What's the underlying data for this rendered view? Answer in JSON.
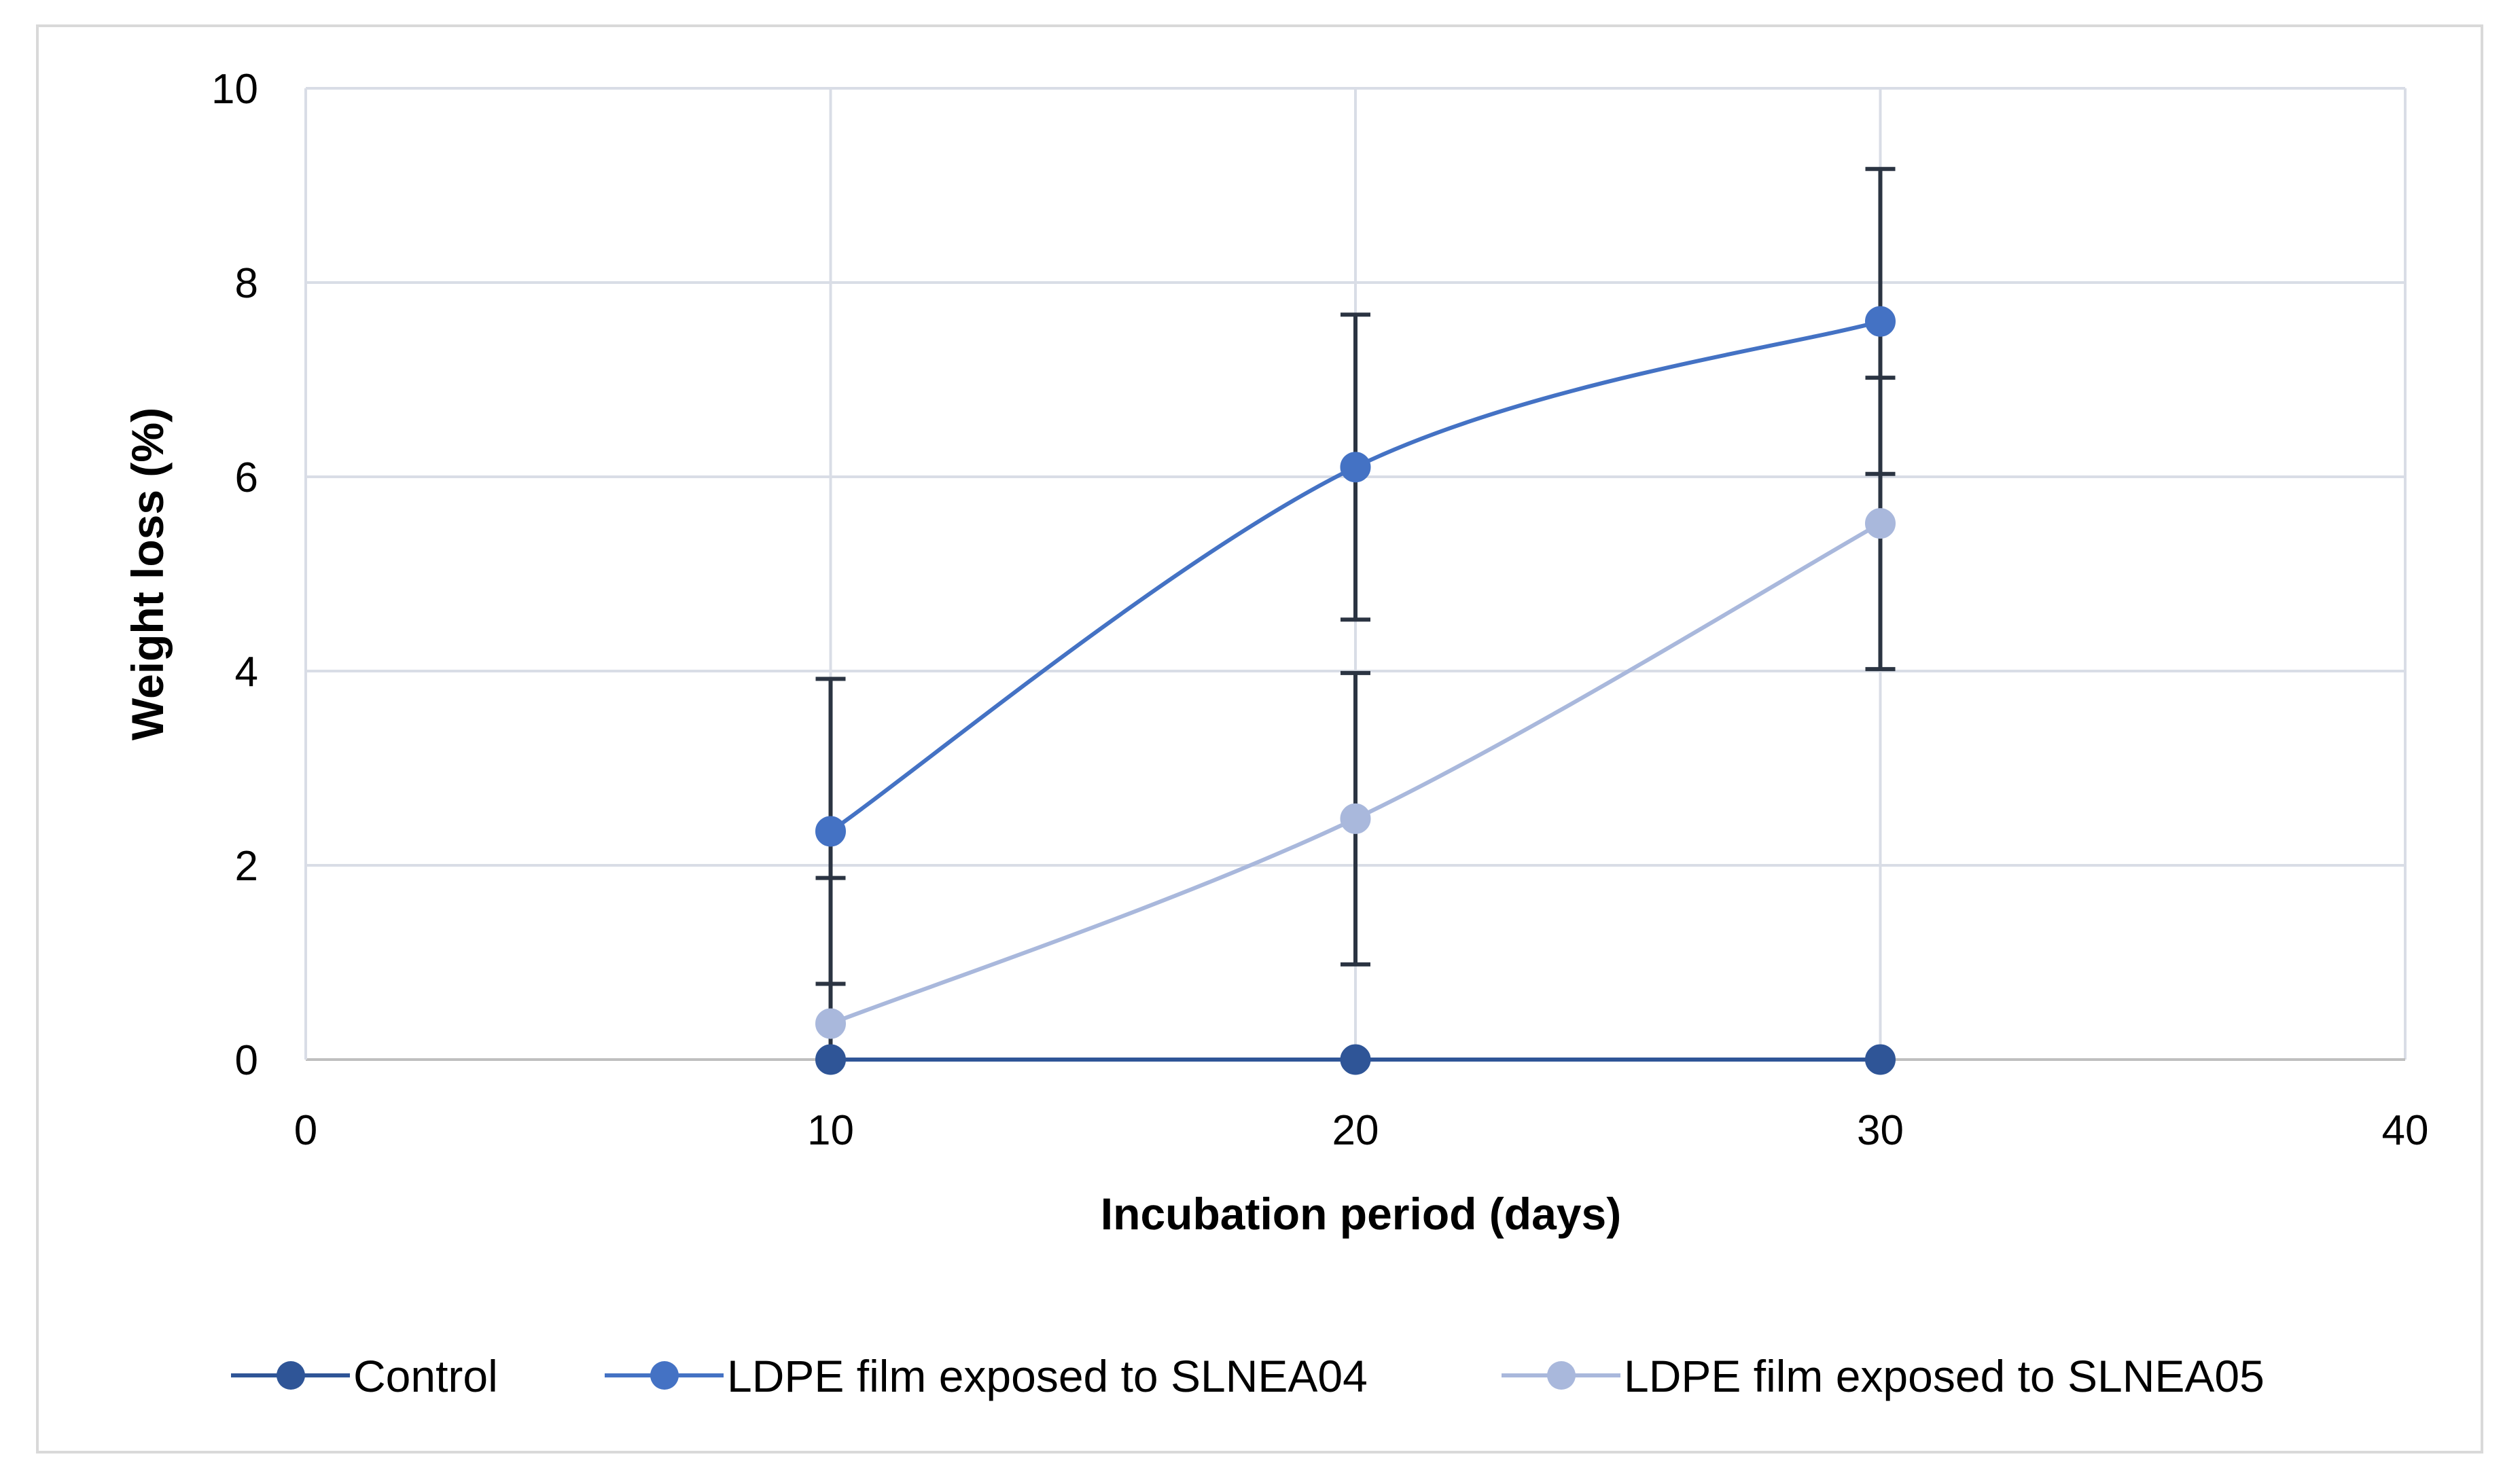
{
  "chart_data": {
    "type": "line",
    "title": "",
    "xlabel": "Incubation period (days)",
    "ylabel": "Weight loss (%)",
    "xlim": [
      0,
      40
    ],
    "ylim": [
      0,
      10
    ],
    "x_ticks": [
      "0",
      "10",
      "20",
      "30",
      "40"
    ],
    "y_ticks": [
      "0",
      "2",
      "4",
      "6",
      "8",
      "10"
    ],
    "grid": true,
    "legend_position": "bottom",
    "x": [
      10,
      20,
      30
    ],
    "series": [
      {
        "name": "Control",
        "color": "#2f5597",
        "values": [
          0,
          0,
          0
        ],
        "error": [
          0,
          0,
          0
        ],
        "smooth": false
      },
      {
        "name": "LDPE film exposed to SLNEA04",
        "color": "#4472c4",
        "values": [
          2.35,
          6.1,
          7.6
        ],
        "error": [
          1.57,
          1.57,
          1.57
        ],
        "smooth": true
      },
      {
        "name": "LDPE film exposed to SLNEA05",
        "color": "#a9b8dc",
        "values": [
          0.37,
          2.48,
          5.52
        ],
        "error": [
          1.5,
          1.5,
          1.5
        ],
        "smooth": true
      }
    ]
  }
}
